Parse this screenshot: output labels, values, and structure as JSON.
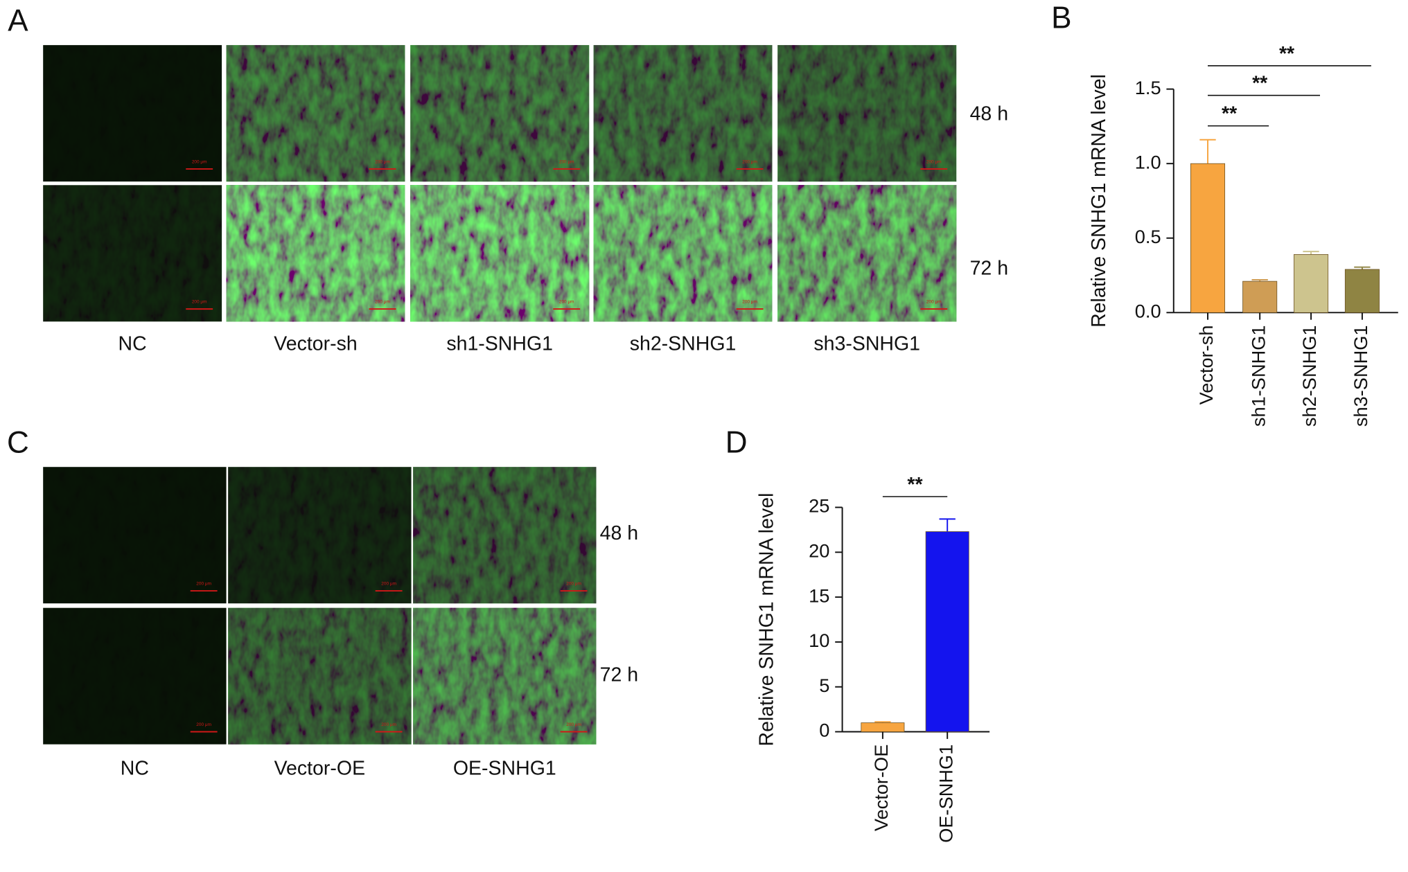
{
  "panels": [
    {
      "label": "A",
      "columns": [
        "NC",
        "Vector-sh",
        "sh1-SNHG1",
        "sh2-SNHG1",
        "sh3-SNHG1"
      ],
      "rows": [
        "48 h",
        "72 h"
      ],
      "scale_bar": "200 μm"
    },
    {
      "label": "C",
      "columns": [
        "NC",
        "Vector-OE",
        "OE-SNHG1"
      ],
      "rows": [
        "48 h",
        "72 h"
      ],
      "scale_bar": "200 μm"
    }
  ],
  "chart_data": [
    {
      "type": "bar",
      "label": "B",
      "ylabel": "Relative SNHG1 mRNA level",
      "categories": [
        "Vector-sh",
        "sh1-SNHG1",
        "sh2-SNHG1",
        "sh3-SNHG1"
      ],
      "values": [
        1.0,
        0.21,
        0.39,
        0.29
      ],
      "errors": [
        0.16,
        0.01,
        0.02,
        0.015
      ],
      "colors": [
        "#f7a540",
        "#cf9d55",
        "#cdc48e",
        "#8f8443"
      ],
      "ylim": [
        0,
        1.5
      ],
      "yticks": [
        {
          "value": 0,
          "label": "0.0"
        },
        0.5,
        {
          "value": 1,
          "label": "1.0"
        },
        1.5
      ],
      "annotations": [
        "**",
        "**",
        "**"
      ]
    },
    {
      "type": "bar",
      "label": "D",
      "ylabel": "Relative SNHG1 mRNA level",
      "categories": [
        "Vector-OE",
        "OE-SNHG1"
      ],
      "values": [
        1.0,
        22.3
      ],
      "errors": [
        0.1,
        1.4
      ],
      "colors": [
        "#f7a540",
        "#1414ee"
      ],
      "ylim": [
        0,
        25
      ],
      "yticks": [
        0,
        5,
        10,
        15,
        20,
        25
      ],
      "annotations": [
        "**"
      ]
    }
  ]
}
